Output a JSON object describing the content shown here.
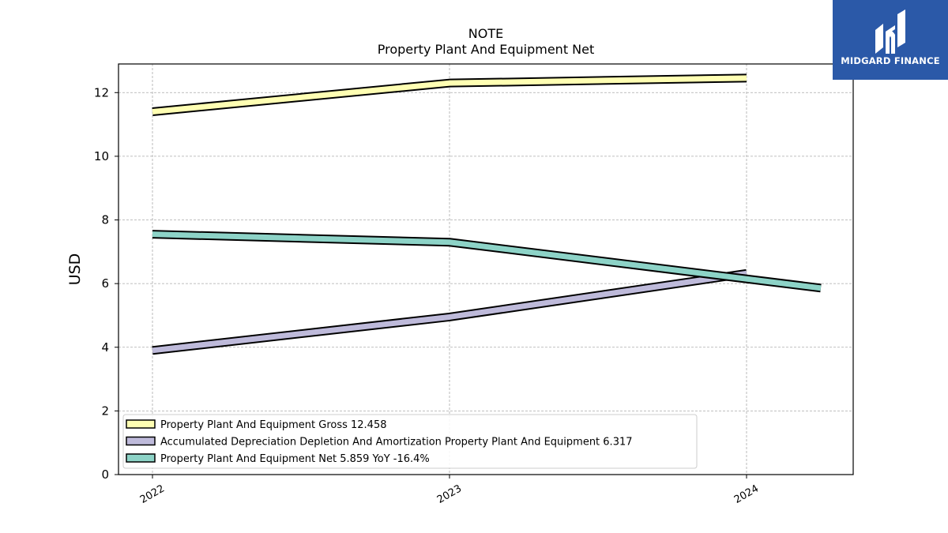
{
  "brand": {
    "name": "MIDGARD FINANCE",
    "color": "#2b59a8"
  },
  "chart_data": {
    "type": "line",
    "title": [
      "NOTE",
      "Property Plant And Equipment Net"
    ],
    "xlabel": "",
    "ylabel": "USD",
    "x": [
      "2022",
      "2023",
      "2024"
    ],
    "ylim": [
      0,
      12.9
    ],
    "yticks": [
      0,
      2,
      4,
      6,
      8,
      10,
      12
    ],
    "grid": true,
    "legend_position": "lower-left",
    "series": [
      {
        "name": "Property Plant And Equipment Gross",
        "legend_label": "Property Plant And Equipment Gross  12.458",
        "color": "#ffffb3",
        "points": [
          [
            "2022",
            11.4
          ],
          [
            "2023",
            12.3
          ],
          [
            "2024",
            12.458
          ]
        ]
      },
      {
        "name": "Accumulated Depreciation Depletion And Amortization Property Plant And Equipment",
        "legend_label": "Accumulated Depreciation Depletion And Amortization Property Plant And Equipment  6.317",
        "color": "#bebada",
        "points": [
          [
            "2022",
            3.9
          ],
          [
            "2023",
            4.95
          ],
          [
            "2024",
            6.317
          ]
        ]
      },
      {
        "name": "Property Plant And Equipment Net",
        "legend_label": "Property Plant And Equipment Net  5.859 YoY -16.4%",
        "color": "#8dd3c7",
        "points": [
          [
            "2022",
            7.55
          ],
          [
            "2023",
            7.3
          ],
          [
            "2024.25",
            5.859
          ]
        ]
      }
    ]
  }
}
